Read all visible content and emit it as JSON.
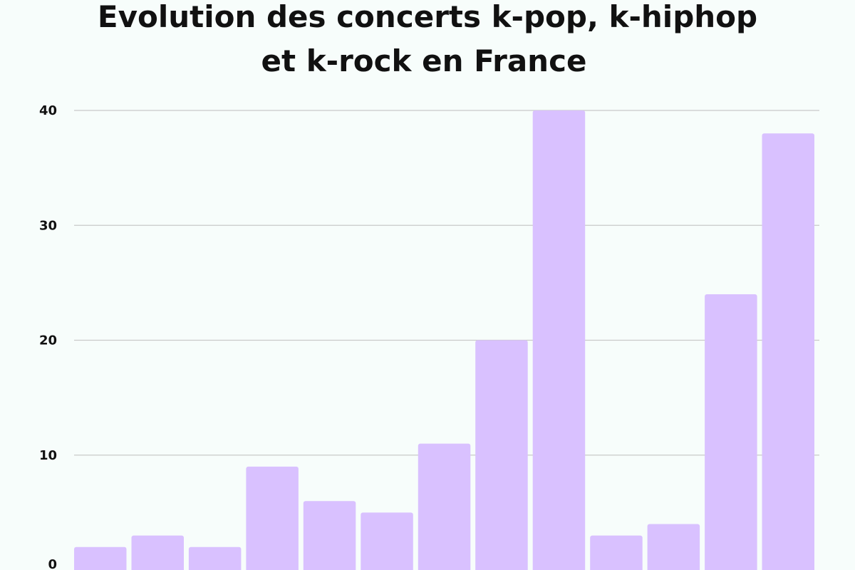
{
  "chart_data": {
    "type": "bar",
    "title_lines": [
      "Evolution des concerts k-pop, k-hiphop",
      "et k-rock en France"
    ],
    "values": [
      2,
      3,
      2,
      9,
      6,
      5,
      11,
      20,
      40,
      3,
      4,
      24,
      38
    ],
    "y_ticks": [
      0,
      10,
      20,
      30,
      40
    ],
    "ylim": [
      0,
      40
    ],
    "grid": true,
    "bar_color": "#d9c1ff",
    "xlabel": "",
    "ylabel": ""
  }
}
